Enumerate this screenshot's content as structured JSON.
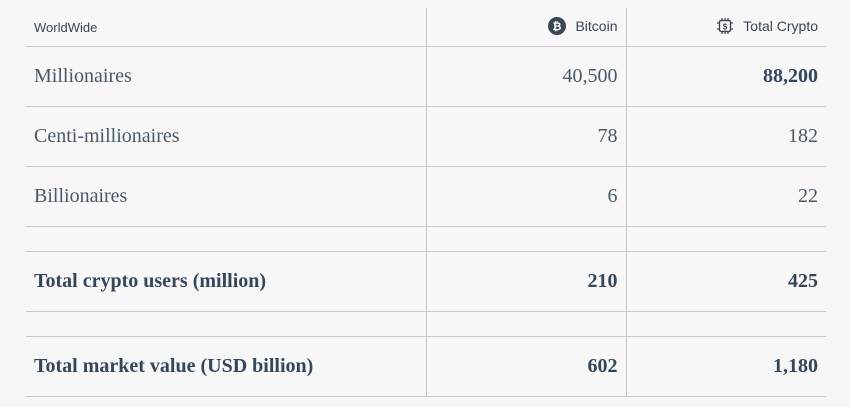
{
  "table": {
    "header": {
      "region": "WorldWide",
      "col_bitcoin": "Bitcoin",
      "col_total": "Total Crypto"
    },
    "rows": [
      {
        "label": "Millionaires",
        "bitcoin": "40,500",
        "total": "88,200"
      },
      {
        "label": "Centi-millionaires",
        "bitcoin": "78",
        "total": "182"
      },
      {
        "label": "Billionaires",
        "bitcoin": "6",
        "total": "22"
      },
      {
        "label": "Total crypto users (million)",
        "bitcoin": "210",
        "total": "425"
      },
      {
        "label": "Total market value (USD billion)",
        "bitcoin": "602",
        "total": "1,180"
      }
    ]
  },
  "icons": {
    "bitcoin": "bitcoin-icon",
    "total_crypto": "chip-dollar-icon"
  },
  "colors": {
    "background": "#f7f7f7",
    "text": "#3a4a5a",
    "border": "#c9c9c9",
    "icon": "#3a4654"
  }
}
